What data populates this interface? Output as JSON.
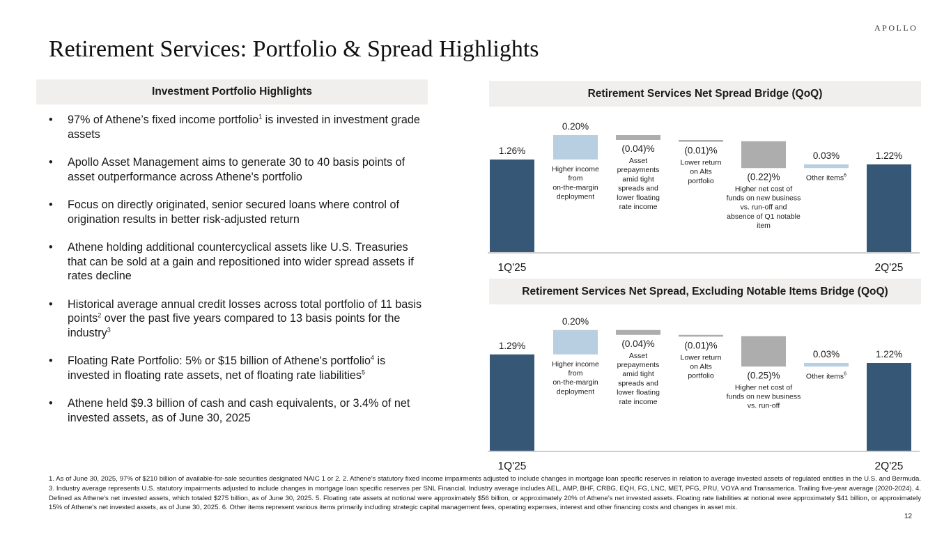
{
  "brand": {
    "logo_text": "APOLLO"
  },
  "title": "Retirement Services: Portfolio & Spread Highlights",
  "left_panel": {
    "header": "Investment Portfolio Highlights",
    "bullet_char": "•",
    "bullets": [
      {
        "parts": [
          {
            "t": "97% of Athene’s fixed income portfolio"
          },
          {
            "sup": "1"
          },
          {
            "t": " is invested in investment grade assets"
          }
        ]
      },
      {
        "parts": [
          {
            "t": "Apollo Asset Management aims to generate 30 to 40 basis points of asset outperformance across Athene's portfolio"
          }
        ]
      },
      {
        "parts": [
          {
            "t": "Focus on directly originated, senior secured loans where control of origination results in better risk-adjusted return"
          }
        ]
      },
      {
        "parts": [
          {
            "t": "Athene holding additional countercyclical assets like U.S. Treasuries that can be sold at a gain and repositioned into wider spread assets if rates decline"
          }
        ]
      },
      {
        "parts": [
          {
            "t": "Historical average annual credit losses across total portfolio of 11 basis points"
          },
          {
            "sup": "2"
          },
          {
            "t": " over the past five years compared to 13 basis points for the industry"
          },
          {
            "sup": "3"
          }
        ]
      },
      {
        "parts": [
          {
            "t": "Floating Rate Portfolio: 5% or $15 billion of Athene's portfolio"
          },
          {
            "sup": "4"
          },
          {
            "t": " is invested in floating rate assets, net of floating rate liabilities"
          },
          {
            "sup": "5"
          }
        ]
      },
      {
        "parts": [
          {
            "t": "Athene held $9.3 billion of cash and cash equivalents, or 3.4% of net invested assets, as of June 30, 2025"
          }
        ]
      }
    ]
  },
  "colors": {
    "total": "#365775",
    "increase": "#b8cfe1",
    "decrease": "#adadad",
    "axis": "#bdbdbd",
    "header_bg": "#f0efee"
  },
  "chart_data": [
    {
      "type": "bar",
      "subtype": "waterfall",
      "title": "Retirement Services Net Spread Bridge (QoQ)",
      "ylim": [
        0.5,
        1.5
      ],
      "value_unit": "%",
      "x_axis_labels": [
        "1Q'25",
        "2Q'25"
      ],
      "steps": [
        {
          "kind": "total",
          "value": 1.26,
          "label": "1.26%",
          "desc": "",
          "sup": ""
        },
        {
          "kind": "increase",
          "value": 0.2,
          "label": "0.20%",
          "desc": "Higher income from on-the-margin deployment",
          "sup": ""
        },
        {
          "kind": "decrease",
          "value": -0.04,
          "label": "(0.04)%",
          "desc": "Asset prepayments amid tight spreads and lower floating rate income",
          "sup": ""
        },
        {
          "kind": "decrease",
          "value": -0.01,
          "label": "(0.01)%",
          "desc": "Lower return on Alts portfolio",
          "sup": ""
        },
        {
          "kind": "decrease",
          "value": -0.22,
          "label": "(0.22)%",
          "desc": "Higher net cost of funds on new business vs. run-off and absence of Q1 notable item",
          "sup": ""
        },
        {
          "kind": "increase",
          "value": 0.03,
          "label": "0.03%",
          "desc": "Other items",
          "sup": "6"
        },
        {
          "kind": "total",
          "value": 1.22,
          "label": "1.22%",
          "desc": "",
          "sup": ""
        }
      ]
    },
    {
      "type": "bar",
      "subtype": "waterfall",
      "title": "Retirement Services Net Spread, Excluding Notable Items Bridge (QoQ)",
      "ylim": [
        0.5,
        1.5
      ],
      "value_unit": "%",
      "x_axis_labels": [
        "1Q'25",
        "2Q'25"
      ],
      "steps": [
        {
          "kind": "total",
          "value": 1.29,
          "label": "1.29%",
          "desc": "",
          "sup": ""
        },
        {
          "kind": "increase",
          "value": 0.2,
          "label": "0.20%",
          "desc": "Higher income from on-the-margin deployment",
          "sup": ""
        },
        {
          "kind": "decrease",
          "value": -0.04,
          "label": "(0.04)%",
          "desc": "Asset prepayments amid tight spreads and lower floating rate income",
          "sup": ""
        },
        {
          "kind": "decrease",
          "value": -0.01,
          "label": "(0.01)%",
          "desc": "Lower return on Alts portfolio",
          "sup": ""
        },
        {
          "kind": "decrease",
          "value": -0.25,
          "label": "(0.25)%",
          "desc": "Higher net cost of funds on new business vs. run-off",
          "sup": ""
        },
        {
          "kind": "increase",
          "value": 0.03,
          "label": "0.03%",
          "desc": "Other items",
          "sup": "6"
        },
        {
          "kind": "total",
          "value": 1.22,
          "label": "1.22%",
          "desc": "",
          "sup": ""
        }
      ]
    }
  ],
  "footnotes": "1. As of June 30, 2025, 97% of $210 billion of available-for-sale securities designated NAIC 1 or 2. 2. Athene’s statutory fixed income impairments adjusted to include changes in mortgage loan specific reserves in relation to average invested assets of regulated entities in the U.S. and Bermuda. 3. Industry average represents U.S. statutory impairments adjusted to include changes in mortgage loan specific reserves per SNL Financial. Industry average includes AEL, AMP, BHF, CRBG, EQH, FG, LNC, MET, PFG, PRU, VOYA and Transamerica. Trailing five-year average (2020-2024). 4. Defined as Athene's net invested assets, which totaled $275 billion, as of June 30, 2025. 5. Floating rate assets at notional were approximately $56 billion, or approximately 20% of Athene’s net invested assets. Floating rate liabilities at notional were approximately $41 billion, or approximately 15% of Athene's net invested assets, as of June 30, 2025. 6. Other items represent various items primarily including strategic capital management fees, operating expenses, interest and other financing costs and changes in asset mix.",
  "page_number": "12"
}
